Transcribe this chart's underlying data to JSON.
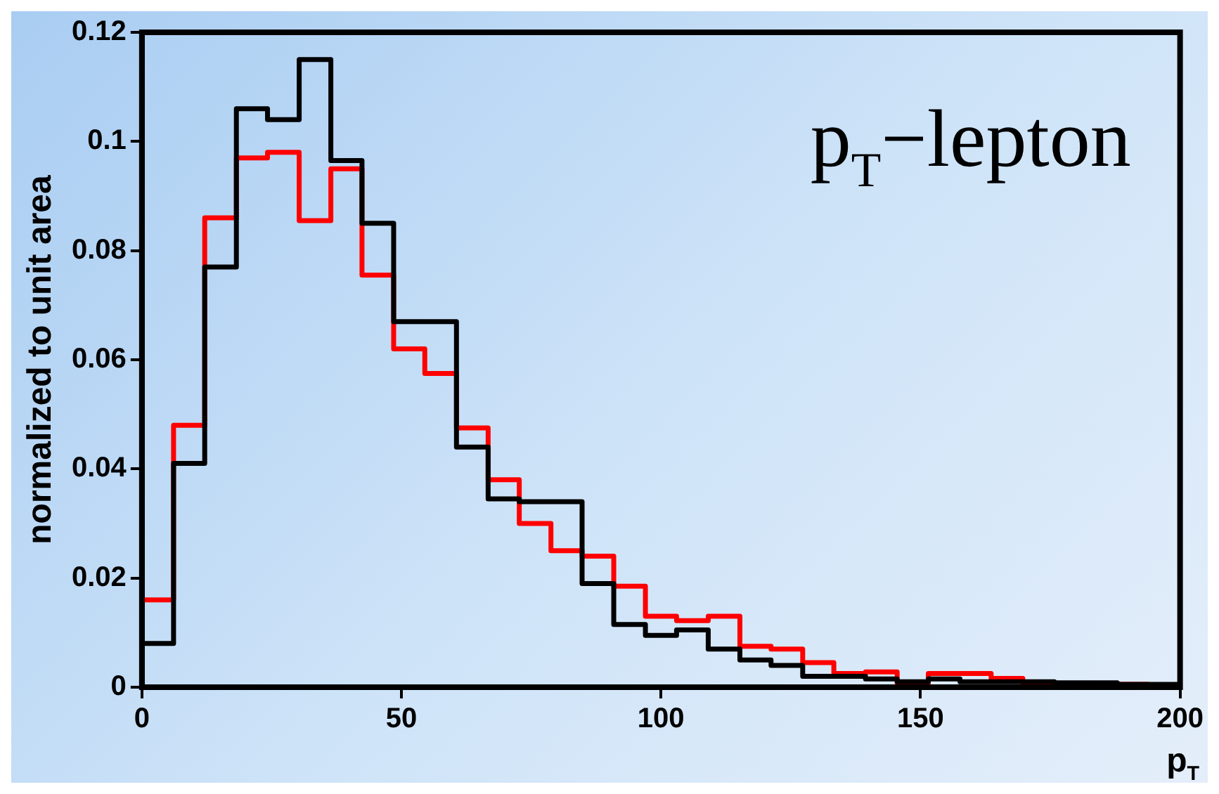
{
  "chart_data": {
    "type": "histogram",
    "title": "p$_{T}$−lepton",
    "xlabel": "p$_{T}$",
    "ylabel": "normalized to unit area",
    "bins": [
      0,
      6.1,
      12.1,
      18.2,
      24.2,
      30.3,
      36.4,
      42.4,
      48.5,
      54.5,
      60.6,
      66.7,
      72.7,
      78.8,
      84.8,
      90.9,
      97,
      103,
      109.1,
      115.2,
      121.2,
      127.3,
      133.3,
      139.4,
      145.5,
      151.5,
      157.6,
      163.6,
      169.7,
      175.8,
      181.8,
      187.9,
      193.9,
      200
    ],
    "series": [
      {
        "color": "#000000",
        "values": [
          0.008,
          0.041,
          0.077,
          0.106,
          0.104,
          0.115,
          0.0965,
          0.085,
          0.067,
          0.067,
          0.044,
          0.0345,
          0.034,
          0.034,
          0.019,
          0.0115,
          0.0095,
          0.0105,
          0.007,
          0.005,
          0.004,
          0.002,
          0.002,
          0.0015,
          0.001,
          0.0015,
          0.001,
          0.001,
          0.001,
          0.0008,
          0.0008,
          0.0005,
          0.0005
        ]
      },
      {
        "color": "#ff0000",
        "values": [
          0.016,
          0.048,
          0.086,
          0.097,
          0.098,
          0.0855,
          0.095,
          0.0755,
          0.062,
          0.0575,
          0.0475,
          0.038,
          0.03,
          0.025,
          0.024,
          0.0185,
          0.013,
          0.0122,
          0.013,
          0.0075,
          0.007,
          0.0045,
          0.0025,
          0.0028,
          0.0008,
          0.0025,
          0.0025,
          0.0016,
          0.0008,
          0.0005,
          0.0005,
          0.0005,
          0.0003
        ]
      }
    ],
    "xlim": [
      0,
      200
    ],
    "xticks": [
      0,
      50,
      100,
      150,
      200
    ],
    "ylim": [
      0,
      0.12
    ],
    "yticks": [
      0,
      0.02,
      0.04,
      0.06,
      0.08,
      0.1,
      0.12
    ],
    "legend": false,
    "grid": false
  }
}
